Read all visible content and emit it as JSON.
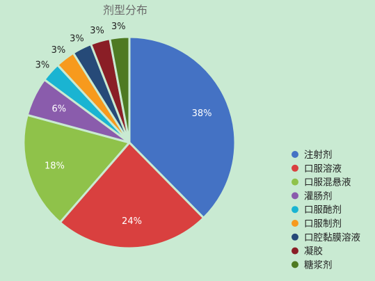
{
  "chart_data": {
    "type": "pie",
    "title": "剂型分布",
    "categories": [
      "注射剂",
      "口服溶液",
      "口服混悬液",
      "灌肠剂",
      "口服酏剂",
      "口服制剂",
      "口腔黏膜溶液",
      "凝胶",
      "糖浆剂"
    ],
    "values": [
      38,
      24,
      18,
      6,
      3,
      3,
      3,
      3,
      3
    ],
    "labels": [
      "38%",
      "24%",
      "18%",
      "6%",
      "3%",
      "3%",
      "3%",
      "3%",
      "3%"
    ],
    "colors": [
      "#4472c4",
      "#d9403f",
      "#8fc24a",
      "#8a5cac",
      "#1ab4d2",
      "#f79a1d",
      "#264a78",
      "#8a1e26",
      "#4e7a22"
    ],
    "legend": "right",
    "start": "12 o'clock, clockwise"
  }
}
